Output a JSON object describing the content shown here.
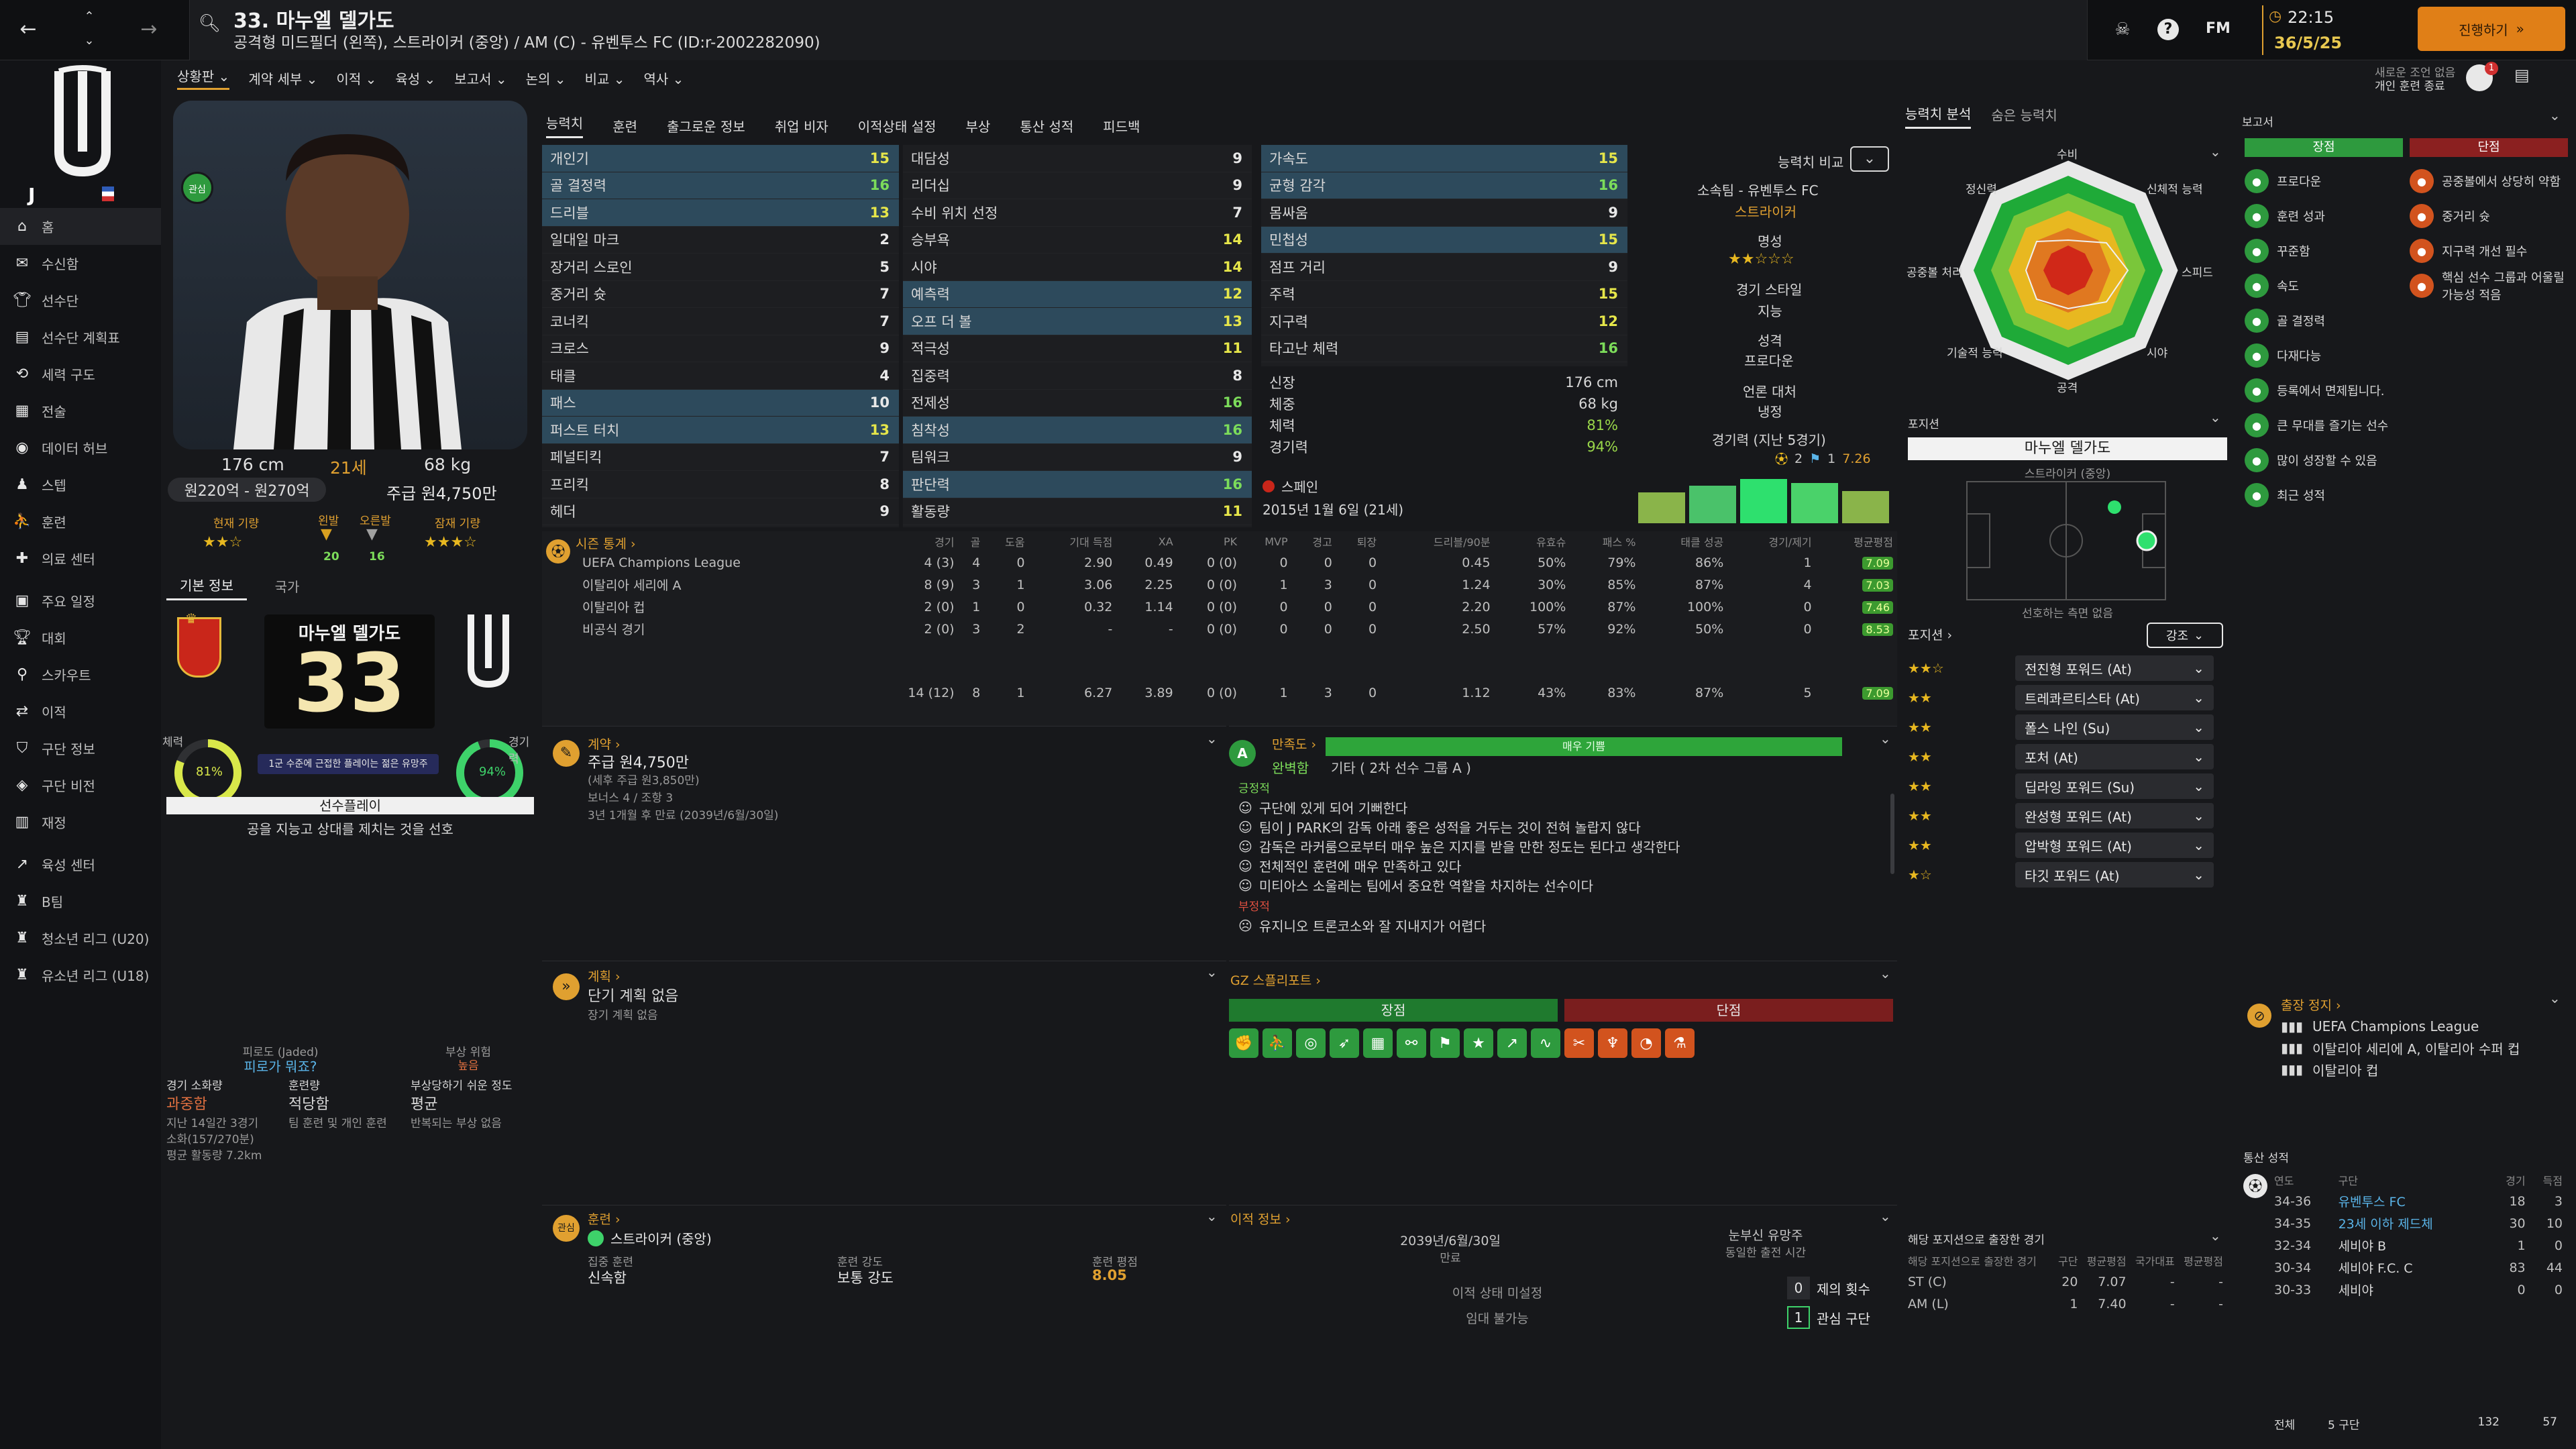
{
  "topbar": {
    "player_number_name": "33. 마누엘 델가도",
    "player_subtitle": "공격형 미드필더 (왼쪽), 스트라이커 (중앙) / AM (C) - 유벤투스 FC (ID:r-2002282090)",
    "fm_label": "FM",
    "time": "22:15",
    "date": "36/5/25",
    "continue_label": "진행하기",
    "notification": "새로운 조언 없음",
    "notification_sub": "개인 훈련 종료",
    "notify_count": "1"
  },
  "subnav": [
    "상황판",
    "계약 세부",
    "이적",
    "육성",
    "보고서",
    "논의",
    "비교",
    "역사"
  ],
  "attr_tabs": [
    "능력치",
    "훈련",
    "출그로운 정보",
    "취업 비자",
    "이적상태 설정",
    "부상",
    "통산 성적",
    "피드백"
  ],
  "sidebar": [
    "홈",
    "수신함",
    "선수단",
    "선수단 계획표",
    "세력 구도",
    "전술",
    "데이터 허브",
    "스텝",
    "훈련",
    "의료 센터",
    "주요 일정",
    "대회",
    "스카우트",
    "이적",
    "구단 정보",
    "구단 비전",
    "재정",
    "육성 센터",
    "B팀",
    "청소년 리그 (U20)",
    "유소년 리그 (U18)"
  ],
  "profile": {
    "height": "176 cm",
    "age": "21세",
    "weight": "68 kg",
    "value": "원220억 - 원270억",
    "wage": "주급 원4,750만",
    "current_ability_label": "현재 기량",
    "left_foot_label": "왼발",
    "right_foot_label": "오른발",
    "left_foot_val": "20",
    "right_foot_val": "16",
    "potential_label": "잠재 기량",
    "ca_stars": "★★☆",
    "pa_stars": "★★★☆",
    "tab_basic": "기본 정보",
    "tab_nation": "국가",
    "shirt_name": "마누엘 델가도",
    "shirt_number": "33",
    "fitness_label": "체력",
    "fitness_val": "81%",
    "match_sharp_label": "경기력",
    "match_sharp_val": "94%",
    "ribbon": "1군 수준에 근접한 플레이는 젊은 유망주",
    "playstyle_tag": "선수플레이",
    "playstyle_desc": "공을 지능고 상대를 제치는 것을 선호",
    "badge_text": "관심"
  },
  "attrs": {
    "technical": [
      [
        "개인기",
        "15",
        "y",
        true
      ],
      [
        "골 결정력",
        "16",
        "g",
        true
      ],
      [
        "드리블",
        "13",
        "y",
        true
      ],
      [
        "일대일 마크",
        "2",
        "w",
        false
      ],
      [
        "장거리 스로인",
        "5",
        "w",
        false
      ],
      [
        "중거리 슛",
        "7",
        "w",
        false
      ],
      [
        "코너킥",
        "7",
        "w",
        false
      ],
      [
        "크로스",
        "9",
        "w",
        false
      ],
      [
        "태클",
        "4",
        "w",
        false
      ],
      [
        "패스",
        "10",
        "w",
        true
      ],
      [
        "퍼스트 터치",
        "13",
        "y",
        true
      ],
      [
        "페널티킥",
        "7",
        "w",
        false
      ],
      [
        "프리킥",
        "8",
        "w",
        false
      ],
      [
        "헤더",
        "9",
        "w",
        false
      ]
    ],
    "mental": [
      [
        "대담성",
        "9",
        "w",
        false
      ],
      [
        "리더십",
        "9",
        "w",
        false
      ],
      [
        "수비 위치 선정",
        "7",
        "w",
        false
      ],
      [
        "승부욕",
        "14",
        "y",
        false
      ],
      [
        "시야",
        "14",
        "y",
        false
      ],
      [
        "예측력",
        "12",
        "y",
        true
      ],
      [
        "오프 더 볼",
        "13",
        "y",
        true
      ],
      [
        "적극성",
        "11",
        "y",
        false
      ],
      [
        "집중력",
        "8",
        "w",
        false
      ],
      [
        "전제성",
        "16",
        "g",
        false
      ],
      [
        "침착성",
        "16",
        "g",
        true
      ],
      [
        "팀워크",
        "9",
        "w",
        false
      ],
      [
        "판단력",
        "16",
        "g",
        true
      ],
      [
        "활동량",
        "11",
        "y",
        false
      ]
    ],
    "physical": [
      [
        "가속도",
        "15",
        "y",
        true
      ],
      [
        "균형 감각",
        "16",
        "g",
        true
      ],
      [
        "몸싸움",
        "9",
        "w",
        false
      ],
      [
        "민첩성",
        "15",
        "y",
        true
      ],
      [
        "점프 거리",
        "9",
        "w",
        false
      ],
      [
        "주력",
        "15",
        "y",
        false
      ],
      [
        "지구력",
        "12",
        "y",
        false
      ],
      [
        "타고난 체력",
        "16",
        "g",
        false
      ]
    ],
    "info": [
      [
        "신장",
        "176 cm"
      ],
      [
        "체중",
        "68 kg"
      ],
      [
        "체력",
        "81%"
      ],
      [
        "경기력",
        "94%"
      ]
    ],
    "nationality": "스페인",
    "dob": "2015년 1월 6일 (21세)"
  },
  "mid_info": {
    "compare_label": "능력치 비교",
    "club": "소속팀 - 유벤투스 FC",
    "role": "스트라이커",
    "fame_label": "명성",
    "fame_stars": "★★☆☆☆",
    "play_style_label": "경기 스타일",
    "play_style": "지능",
    "personality_label": "성격",
    "personality": "프로다운",
    "media_label": "언론 대처",
    "media": "냉정",
    "form_label": "경기력 (지난 5경기)",
    "form_goals": "2",
    "form_assists": "1",
    "form_rating": "7.26"
  },
  "season_stats": {
    "header": "시즌 통계",
    "columns": [
      "경기",
      "골",
      "도움",
      "기대 득점",
      "XA",
      "PK",
      "MVP",
      "경고",
      "퇴장",
      "드리블/90분",
      "유효슈",
      "패스 %",
      "태클 성공",
      "경기/제기",
      "평균평점"
    ],
    "rows": [
      [
        "UEFA Champions League",
        "4 (3)",
        "4",
        "0",
        "2.90",
        "0.49",
        "0 (0)",
        "0",
        "0",
        "0",
        "0.45",
        "50%",
        "79%",
        "86%",
        "1",
        "7.09"
      ],
      [
        "이탈리아 세리에 A",
        "8 (9)",
        "3",
        "1",
        "3.06",
        "2.25",
        "0 (0)",
        "1",
        "3",
        "0",
        "1.24",
        "30%",
        "85%",
        "87%",
        "4",
        "7.03"
      ],
      [
        "이탈리아 컵",
        "2 (0)",
        "1",
        "0",
        "0.32",
        "1.14",
        "0 (0)",
        "0",
        "0",
        "0",
        "2.20",
        "100%",
        "87%",
        "100%",
        "0",
        "7.46"
      ],
      [
        "비공식 경기",
        "2 (0)",
        "3",
        "2",
        "-",
        "-",
        "0 (0)",
        "0",
        "0",
        "0",
        "2.50",
        "57%",
        "92%",
        "50%",
        "0",
        "8.53"
      ]
    ],
    "total": [
      "14 (12)",
      "8",
      "1",
      "6.27",
      "3.89",
      "0 (0)",
      "1",
      "3",
      "0",
      "1.12",
      "43%",
      "83%",
      "87%",
      "5",
      "7.09"
    ]
  },
  "contract": {
    "header": "계약",
    "wage": "주급 원4,750만",
    "wage_sub": "(세후 주급 원3,850만)",
    "bonus": "보너스 4 / 조항 3",
    "expiry": "3년 1개월 후 만료 (2039년/6월/30일)"
  },
  "happiness": {
    "header": "만족도",
    "bar_label": "매우 기쁨",
    "status": "완벽함",
    "group": "기타 ( 2차 선수 그룹 A )",
    "positive_label": "긍정적",
    "positives": [
      "구단에 있게 되어 기뻐한다",
      "팀이 J PARK의 감독 아래 좋은 성적을 거두는 것이 전혀 놀랍지 않다",
      "감독은 라커룸으로부터 매우 높은 지지를 받을 만한 정도는 된다고 생각한다",
      "전체적인 훈련에 매우 만족하고 있다",
      "미티아스 소울레는 팀에서 중요한 역할을 차지하는 선수이다"
    ],
    "negative_label": "부정적",
    "negatives": [
      "유지니오 트론코소와 잘 지내지가 어렵다"
    ]
  },
  "plans": {
    "header": "계획",
    "short": "단기 계획 없음",
    "long": "장기 계획 없음"
  },
  "gz_report": {
    "header": "GZ 스플리포트",
    "pro_label": "장점",
    "con_label": "단점"
  },
  "training": {
    "header": "훈련",
    "role": "스트라이커 (중앙)",
    "focus_label": "집중 훈련",
    "focus": "신속함",
    "intensity_label": "훈련 강도",
    "intensity": "보통 강도",
    "rating_label": "훈련 평점",
    "rating": "8.05"
  },
  "transfer": {
    "header": "이적 정보",
    "expiry": "2039년/6월/30일",
    "expiry_label": "만료",
    "status_label": "이적 상태 미설정",
    "loan_label": "임대 불가능",
    "interest_label": "눈부신 유망주",
    "interest_sub": "동일한 출전 시간",
    "offers_label": "제의 횟수",
    "offers_val": "0",
    "clubs_label": "관심 구단",
    "clubs_val": "1"
  },
  "radar": {
    "tab1": "능력치 분석",
    "tab2": "숨은 능력치",
    "axes": [
      "수비",
      "신체적 능력",
      "스피드",
      "시야",
      "공격",
      "기술적 능력",
      "공중볼 처리",
      "정신력"
    ]
  },
  "position": {
    "header": "포지션",
    "player_name": "마누엘 델가도",
    "player_role": "스트라이커 (중앙)",
    "note": "선호하는 측면 없음",
    "roles_header": "포지션",
    "emphasis": "강조",
    "roles": [
      [
        "★★☆",
        "전진형 포워드 (At)"
      ],
      [
        "★★",
        "트레콰르티스타 (At)"
      ],
      [
        "★★",
        "폴스 나인 (Su)"
      ],
      [
        "★★",
        "포처 (At)"
      ],
      [
        "★★",
        "딥라잉 포워드 (Su)"
      ],
      [
        "★★",
        "완성형 포워드 (At)"
      ],
      [
        "★★",
        "압박형 포워드 (At)"
      ],
      [
        "★☆",
        "타깃 포워드 (At)"
      ]
    ],
    "appearances_header": "해당 포지션으로 출장한 경기",
    "appearances_cols": [
      "해당 포지션으로 출장한 경기",
      "구단",
      "평균평점",
      "국가대표",
      "평균평점"
    ],
    "appearances": [
      [
        "ST (C)",
        "20",
        "7.07",
        "-",
        "-"
      ],
      [
        "AM (L)",
        "1",
        "7.40",
        "-",
        "-"
      ]
    ]
  },
  "report": {
    "header": "보고서",
    "pros_label": "장점",
    "cons_label": "단점",
    "pros": [
      "프로다운",
      "훈련 성과",
      "꾸준함",
      "속도",
      "골 결정력",
      "다재다능",
      "등록에서 면제됩니다.",
      "큰 무대를 즐기는 선수",
      "많이 성장할 수 있음",
      "최근 성적"
    ],
    "cons": [
      "공중볼에서 상당히 약함",
      "중거리 슛",
      "지구력 개선 필수",
      "핵심 선수 그룹과 어울릴 가능성 적음"
    ]
  },
  "suspension": {
    "header": "출장 정지",
    "items": [
      "UEFA Champions League",
      "이탈리아 세리에 A, 이탈리아 수퍼 컵",
      "이탈리아 컵"
    ]
  },
  "career": {
    "header": "통산 성적",
    "cols": [
      "연도",
      "구단",
      "경기",
      "득점"
    ],
    "rows": [
      [
        "34-36",
        "유벤투스 FC",
        "18",
        "3"
      ],
      [
        "34-35",
        "23세 이하 제드체",
        "30",
        "10"
      ],
      [
        "32-34",
        "세비야 B",
        "1",
        "0"
      ],
      [
        "30-34",
        "세비야 F.C. C",
        "83",
        "44"
      ],
      [
        "30-33",
        "세비야",
        "0",
        "0"
      ]
    ],
    "total_label": "전체",
    "total_clubs": "5 구단",
    "total_apps": "132",
    "total_goals": "57"
  },
  "fitness_info": {
    "fatigue_label": "피로도 (Jaded)",
    "fatigue_q": "피로가 뭐죠?",
    "injury_label": "부상 위험",
    "injury_val": "높음",
    "match_load_label": "경기 소화량",
    "match_load": "과중함",
    "training_label": "훈련량",
    "training": "적당함",
    "proneness_label": "부상당하기 쉬운 정도",
    "proneness": "평균",
    "load_sub": "지난 14일간 3경기",
    "load_sub2": "소화(157/270분)",
    "distance": "평균 활동량 7.2km",
    "training_sub": "팀 훈련 및 개인 훈련",
    "prone_sub": "반복되는 부상 없음"
  },
  "colors": {
    "accent": "#e0a030",
    "green": "#2e9a3e",
    "red": "#8b2020",
    "bg": "#17181b"
  }
}
